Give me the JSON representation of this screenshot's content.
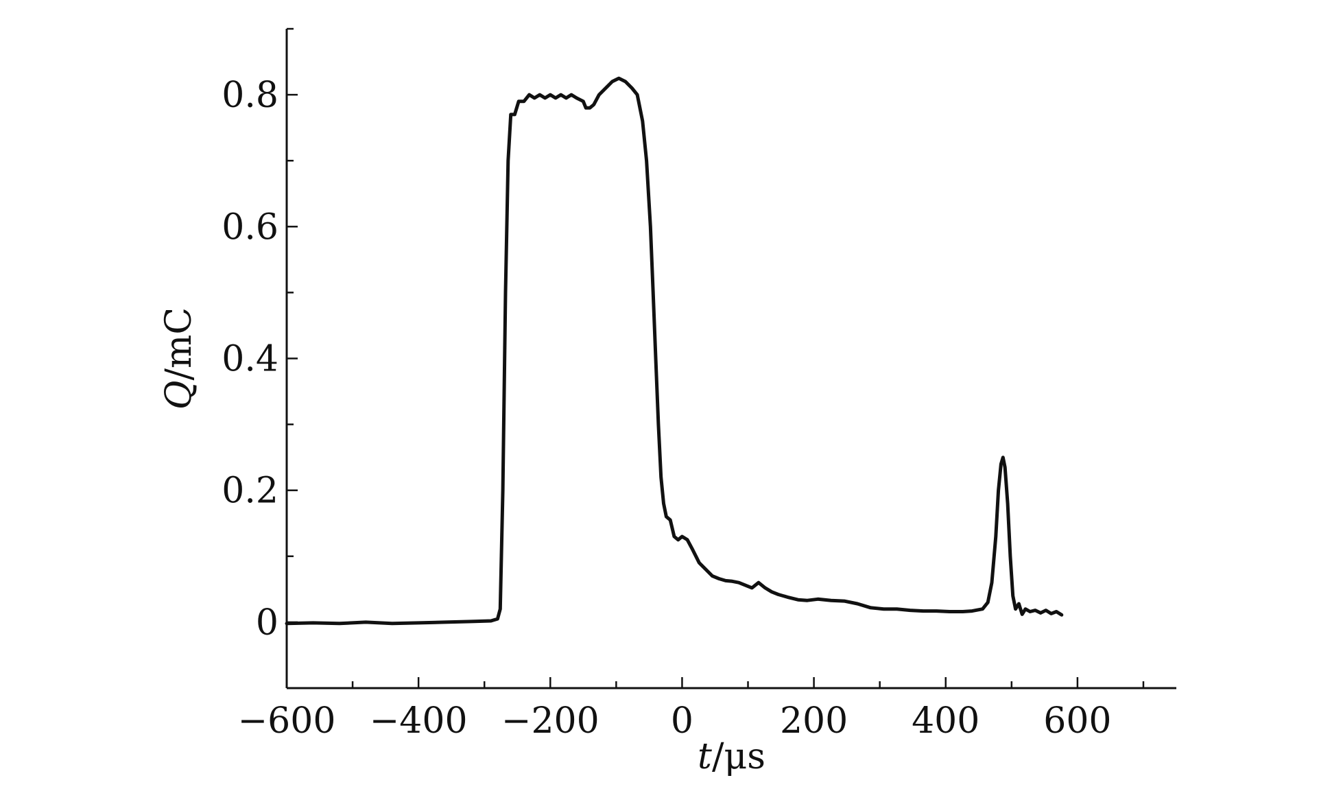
{
  "chart_data": {
    "type": "line",
    "title": "",
    "xlabel": {
      "italic": "t",
      "rest": "/μs"
    },
    "ylabel": {
      "italic": "Q",
      "rest": "/mC"
    },
    "xlim": [
      -600,
      750
    ],
    "ylim": [
      -0.1,
      0.9
    ],
    "x_major_ticks": [
      -600,
      -400,
      -200,
      0,
      200,
      400,
      600
    ],
    "x_minor_ticks": [
      -500,
      -300,
      -100,
      100,
      300,
      500,
      700
    ],
    "x_tick_labels": [
      "−600",
      "−400",
      "−200",
      "0",
      "200",
      "400",
      "600"
    ],
    "y_major_ticks": [
      0,
      0.2,
      0.4,
      0.6,
      0.8
    ],
    "y_minor_ticks": [
      -0.1,
      0.1,
      0.3,
      0.5,
      0.7,
      0.9
    ],
    "y_tick_labels": [
      "0",
      "0.2",
      "0.4",
      "0.6",
      "0.8"
    ],
    "grid": false,
    "legend": "none",
    "series": [
      {
        "color": "#111111",
        "points": [
          [
            -600,
            -0.002
          ],
          [
            -560,
            -0.001
          ],
          [
            -520,
            -0.002
          ],
          [
            -480,
            0.0
          ],
          [
            -440,
            -0.002
          ],
          [
            -400,
            -0.001
          ],
          [
            -360,
            0.0
          ],
          [
            -320,
            0.001
          ],
          [
            -290,
            0.002
          ],
          [
            -280,
            0.005
          ],
          [
            -276,
            0.02
          ],
          [
            -272,
            0.2
          ],
          [
            -268,
            0.5
          ],
          [
            -264,
            0.7
          ],
          [
            -260,
            0.77
          ],
          [
            -254,
            0.77
          ],
          [
            -248,
            0.79
          ],
          [
            -240,
            0.79
          ],
          [
            -232,
            0.8
          ],
          [
            -224,
            0.795
          ],
          [
            -216,
            0.8
          ],
          [
            -208,
            0.795
          ],
          [
            -200,
            0.8
          ],
          [
            -192,
            0.795
          ],
          [
            -184,
            0.8
          ],
          [
            -176,
            0.795
          ],
          [
            -168,
            0.8
          ],
          [
            -160,
            0.795
          ],
          [
            -150,
            0.79
          ],
          [
            -146,
            0.78
          ],
          [
            -140,
            0.78
          ],
          [
            -134,
            0.785
          ],
          [
            -126,
            0.8
          ],
          [
            -116,
            0.81
          ],
          [
            -106,
            0.82
          ],
          [
            -96,
            0.825
          ],
          [
            -86,
            0.82
          ],
          [
            -76,
            0.81
          ],
          [
            -68,
            0.8
          ],
          [
            -60,
            0.76
          ],
          [
            -54,
            0.7
          ],
          [
            -48,
            0.6
          ],
          [
            -44,
            0.5
          ],
          [
            -40,
            0.4
          ],
          [
            -36,
            0.3
          ],
          [
            -32,
            0.22
          ],
          [
            -28,
            0.18
          ],
          [
            -24,
            0.16
          ],
          [
            -18,
            0.155
          ],
          [
            -12,
            0.13
          ],
          [
            -6,
            0.125
          ],
          [
            0,
            0.13
          ],
          [
            8,
            0.125
          ],
          [
            16,
            0.11
          ],
          [
            26,
            0.09
          ],
          [
            36,
            0.08
          ],
          [
            46,
            0.07
          ],
          [
            56,
            0.066
          ],
          [
            66,
            0.063
          ],
          [
            76,
            0.062
          ],
          [
            86,
            0.06
          ],
          [
            96,
            0.056
          ],
          [
            106,
            0.052
          ],
          [
            116,
            0.06
          ],
          [
            126,
            0.052
          ],
          [
            136,
            0.046
          ],
          [
            146,
            0.042
          ],
          [
            160,
            0.038
          ],
          [
            176,
            0.034
          ],
          [
            190,
            0.033
          ],
          [
            206,
            0.035
          ],
          [
            226,
            0.033
          ],
          [
            246,
            0.032
          ],
          [
            266,
            0.028
          ],
          [
            286,
            0.022
          ],
          [
            306,
            0.02
          ],
          [
            326,
            0.02
          ],
          [
            346,
            0.018
          ],
          [
            366,
            0.017
          ],
          [
            386,
            0.017
          ],
          [
            406,
            0.016
          ],
          [
            426,
            0.016
          ],
          [
            440,
            0.017
          ],
          [
            456,
            0.02
          ],
          [
            464,
            0.03
          ],
          [
            470,
            0.06
          ],
          [
            476,
            0.13
          ],
          [
            480,
            0.2
          ],
          [
            484,
            0.24
          ],
          [
            487,
            0.25
          ],
          [
            490,
            0.235
          ],
          [
            494,
            0.18
          ],
          [
            498,
            0.1
          ],
          [
            502,
            0.04
          ],
          [
            506,
            0.02
          ],
          [
            511,
            0.028
          ],
          [
            516,
            0.012
          ],
          [
            521,
            0.02
          ],
          [
            528,
            0.016
          ],
          [
            536,
            0.018
          ],
          [
            544,
            0.014
          ],
          [
            552,
            0.018
          ],
          [
            560,
            0.013
          ],
          [
            568,
            0.016
          ],
          [
            576,
            0.011
          ]
        ]
      }
    ]
  }
}
